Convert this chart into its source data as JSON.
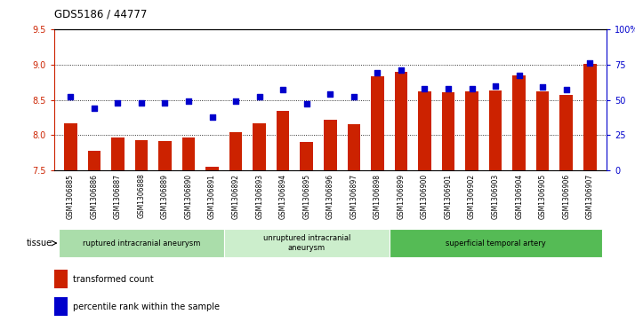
{
  "title": "GDS5186 / 44777",
  "samples": [
    "GSM1306885",
    "GSM1306886",
    "GSM1306887",
    "GSM1306888",
    "GSM1306889",
    "GSM1306890",
    "GSM1306891",
    "GSM1306892",
    "GSM1306893",
    "GSM1306894",
    "GSM1306895",
    "GSM1306896",
    "GSM1306897",
    "GSM1306898",
    "GSM1306899",
    "GSM1306900",
    "GSM1306901",
    "GSM1306902",
    "GSM1306903",
    "GSM1306904",
    "GSM1306905",
    "GSM1306906",
    "GSM1306907"
  ],
  "bar_values": [
    8.17,
    7.78,
    7.97,
    7.93,
    7.92,
    7.97,
    7.55,
    8.04,
    8.17,
    8.35,
    7.9,
    8.22,
    8.15,
    8.83,
    8.89,
    8.62,
    8.61,
    8.62,
    8.63,
    8.85,
    8.62,
    8.57,
    9.01
  ],
  "percentile_values": [
    52,
    44,
    48,
    48,
    48,
    49,
    38,
    49,
    52,
    57,
    47,
    54,
    52,
    69,
    71,
    58,
    58,
    58,
    60,
    67,
    59,
    57,
    76
  ],
  "bar_color": "#cc2200",
  "percentile_color": "#0000cc",
  "ylim_left": [
    7.5,
    9.5
  ],
  "ylim_right": [
    0,
    100
  ],
  "yticks_left": [
    7.5,
    8.0,
    8.5,
    9.0,
    9.5
  ],
  "yticks_right": [
    0,
    25,
    50,
    75,
    100
  ],
  "ytick_labels_right": [
    "0",
    "25",
    "50",
    "75",
    "100%"
  ],
  "grid_values": [
    8.0,
    8.5,
    9.0
  ],
  "tissue_groups": [
    {
      "label": "ruptured intracranial aneurysm",
      "start": 0,
      "end": 7,
      "color": "#aaddaa"
    },
    {
      "label": "unruptured intracranial\naneurysm",
      "start": 7,
      "end": 14,
      "color": "#cceecc"
    },
    {
      "label": "superficial temporal artery",
      "start": 14,
      "end": 23,
      "color": "#55bb55"
    }
  ],
  "legend_items": [
    {
      "label": "transformed count",
      "color": "#cc2200"
    },
    {
      "label": "percentile rank within the sample",
      "color": "#0000cc"
    }
  ],
  "tissue_label": "tissue"
}
